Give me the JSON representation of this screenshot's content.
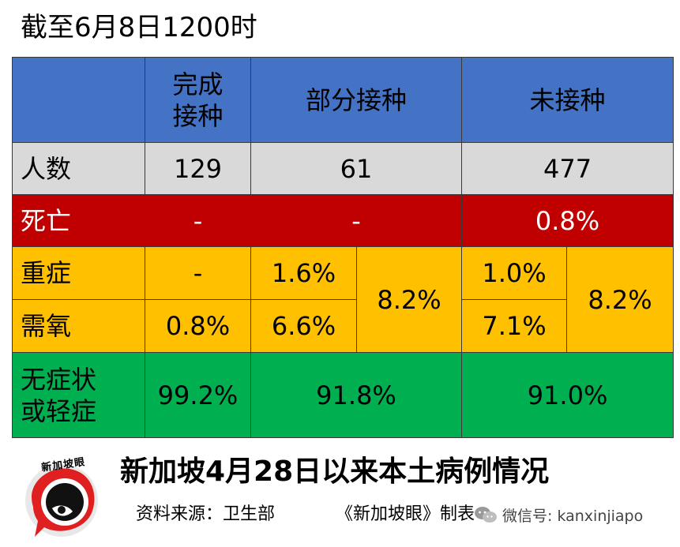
{
  "title": "截至6月8日1200时",
  "table": {
    "headers": [
      "",
      "完成接种",
      "部分接种",
      "未接种"
    ],
    "rows": {
      "count": {
        "label": "人数",
        "complete": "129",
        "partial": "61",
        "none": "477"
      },
      "death": {
        "label": "死亡",
        "complete": "-",
        "partial": "-",
        "none": "0.8%"
      },
      "severe": {
        "label": "重症",
        "complete": "-",
        "partial": "1.6%",
        "none": "1.0%"
      },
      "oxygen": {
        "label": "需氧",
        "complete": "0.8%",
        "partial": "6.6%",
        "none": "7.1%"
      },
      "combined": {
        "partial": "8.2%",
        "none": "8.2%"
      },
      "mild": {
        "label": "无症状或轻症",
        "complete": "99.2%",
        "partial": "91.8%",
        "none": "91.0%"
      }
    }
  },
  "footer": {
    "logo_text": "新加坡眼",
    "subtitle": "新加坡4月28日以来本土病例情况",
    "source": "资料来源：卫生部",
    "credit": "《新加坡眼》制表",
    "wechat": "微信号: kanxinjiapo"
  },
  "colors": {
    "header": "#4472c4",
    "count_row": "#d9d9d9",
    "death_row": "#c00000",
    "severe_rows": "#ffc000",
    "mild_row": "#00b050"
  }
}
